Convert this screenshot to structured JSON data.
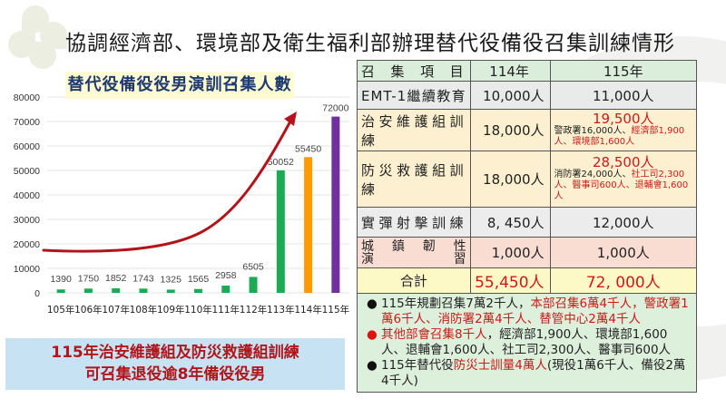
{
  "page": {
    "title": "協調經濟部、環境部及衛生福利部辦理替代役備役召集訓練情形"
  },
  "chart_title": "替代役備役役男演訓召集人數",
  "banner": {
    "line1": "115年治安維護組及防災救護組訓練",
    "line2": "可召集退役逾8年備役役男"
  },
  "chart_data": {
    "type": "bar",
    "title": "替代役備役役男演訓召集人數",
    "categories": [
      "105年",
      "106年",
      "107年",
      "108年",
      "109年",
      "110年",
      "111年",
      "112年",
      "113年",
      "114年",
      "115年"
    ],
    "values": [
      1390,
      1750,
      1852,
      1743,
      1325,
      1565,
      2958,
      6505,
      50052,
      55450,
      72000
    ],
    "bar_colors": [
      "#1ea955",
      "#1ea955",
      "#1ea955",
      "#1ea955",
      "#1ea955",
      "#1ea955",
      "#1ea955",
      "#1ea955",
      "#1ea955",
      "#ff9a00",
      "#7030a0"
    ],
    "data_labels": [
      "1390",
      "1750",
      "1852",
      "1743",
      "1325",
      "1565",
      "2958",
      "6505",
      "50052",
      "55450",
      "72000"
    ],
    "yticks": [
      "0",
      "10000",
      "20000",
      "30000",
      "40000",
      "50000",
      "60000",
      "70000",
      "80000"
    ],
    "ylim": [
      0,
      80000
    ],
    "xlabel": "",
    "ylabel": "",
    "grid": true,
    "legend": null,
    "annotation": "red upward-trend arrow",
    "trend_color": "#b3141b"
  },
  "table": {
    "headers": [
      "召集項目",
      "114年",
      "115年"
    ],
    "rows": [
      {
        "item": "EMT-1繼續教育",
        "y114": "10,000人",
        "y115": "11,000人"
      },
      {
        "item": "治安維護組訓練",
        "y114": "18,000人",
        "y115": "19,500人",
        "y115_detail_black": "警政署16,000人、",
        "y115_detail_red": "經濟部1,900人、環境部1,600人"
      },
      {
        "item": "防災救護組訓練",
        "y114": "18,000人",
        "y115": "28,500人",
        "y115_detail_black": "消防署24,000人、",
        "y115_detail_red": "社工司2,300人、醫事司600人、退輔會1,600人"
      },
      {
        "item": "實彈射擊訓練",
        "y114": "8, 450人",
        "y115": "12,000人"
      },
      {
        "item_line1": [
          "城",
          "鎮",
          "韌",
          "性"
        ],
        "item_line2": [
          "演",
          "習"
        ],
        "y114": "1,000人",
        "y115": "1,000人"
      },
      {
        "item": "合計",
        "y114": "55,450人",
        "y115": "72, 000人"
      }
    ]
  },
  "notes": [
    {
      "bullet": "●",
      "bullet_color": "#111111",
      "black": "115年規劃召集7萬2千人，",
      "red": "本部召集6萬4千人，警政署1萬6千人、消防署2萬4千人、替管中心2萬4千人",
      "tail": ""
    },
    {
      "bullet": "●",
      "bullet_color": "#dd1111",
      "black": "",
      "red": "其他部會召集8千人",
      "tail": "，經濟部1,900人、環境部1,600人、退輔會1,600人、社工司2,300人、醫事司600人"
    },
    {
      "bullet": "●",
      "bullet_color": "#111111",
      "black": "115年替代役",
      "red": "防災士訓量4萬人",
      "tail": "(現役1萬6千人、備役2萬4千人)"
    }
  ]
}
